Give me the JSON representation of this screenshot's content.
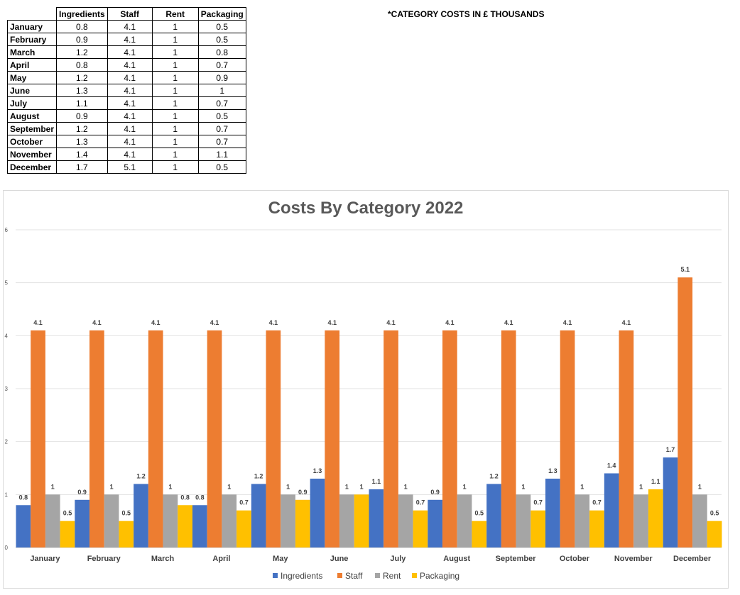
{
  "table": {
    "headers": [
      "",
      "Ingredients",
      "Staff",
      "Rent",
      "Packaging"
    ],
    "rows": [
      [
        "January",
        "0.8",
        "4.1",
        "1",
        "0.5"
      ],
      [
        "February",
        "0.9",
        "4.1",
        "1",
        "0.5"
      ],
      [
        "March",
        "1.2",
        "4.1",
        "1",
        "0.8"
      ],
      [
        "April",
        "0.8",
        "4.1",
        "1",
        "0.7"
      ],
      [
        "May",
        "1.2",
        "4.1",
        "1",
        "0.9"
      ],
      [
        "June",
        "1.3",
        "4.1",
        "1",
        "1"
      ],
      [
        "July",
        "1.1",
        "4.1",
        "1",
        "0.7"
      ],
      [
        "August",
        "0.9",
        "4.1",
        "1",
        "0.5"
      ],
      [
        "September",
        "1.2",
        "4.1",
        "1",
        "0.7"
      ],
      [
        "October",
        "1.3",
        "4.1",
        "1",
        "0.7"
      ],
      [
        "November",
        "1.4",
        "4.1",
        "1",
        "1.1"
      ],
      [
        "December",
        "1.7",
        "5.1",
        "1",
        "0.5"
      ]
    ]
  },
  "note": "*CATEGORY COSTS IN £ THOUSANDS",
  "chart_data": {
    "type": "bar",
    "title": "Costs By Category 2022",
    "xlabel": "",
    "ylabel": "",
    "categories": [
      "January",
      "February",
      "March",
      "April",
      "May",
      "June",
      "July",
      "August",
      "September",
      "October",
      "November",
      "December"
    ],
    "series": [
      {
        "name": "Ingredients",
        "color": "#4472C4",
        "values": [
          0.8,
          0.9,
          1.2,
          0.8,
          1.2,
          1.3,
          1.1,
          0.9,
          1.2,
          1.3,
          1.4,
          1.7
        ]
      },
      {
        "name": "Staff",
        "color": "#ED7D31",
        "values": [
          4.1,
          4.1,
          4.1,
          4.1,
          4.1,
          4.1,
          4.1,
          4.1,
          4.1,
          4.1,
          4.1,
          5.1
        ]
      },
      {
        "name": "Rent",
        "color": "#A5A5A5",
        "values": [
          1,
          1,
          1,
          1,
          1,
          1,
          1,
          1,
          1,
          1,
          1,
          1
        ]
      },
      {
        "name": "Packaging",
        "color": "#FFC000",
        "values": [
          0.5,
          0.5,
          0.8,
          0.7,
          0.9,
          1,
          0.7,
          0.5,
          0.7,
          0.7,
          1.1,
          0.5
        ]
      }
    ],
    "ylim": [
      0,
      6
    ],
    "yticks": [
      "0",
      "1",
      "2",
      "3",
      "4",
      "5",
      "6"
    ],
    "grid": true,
    "legend": "bottom",
    "data_labels": true
  }
}
